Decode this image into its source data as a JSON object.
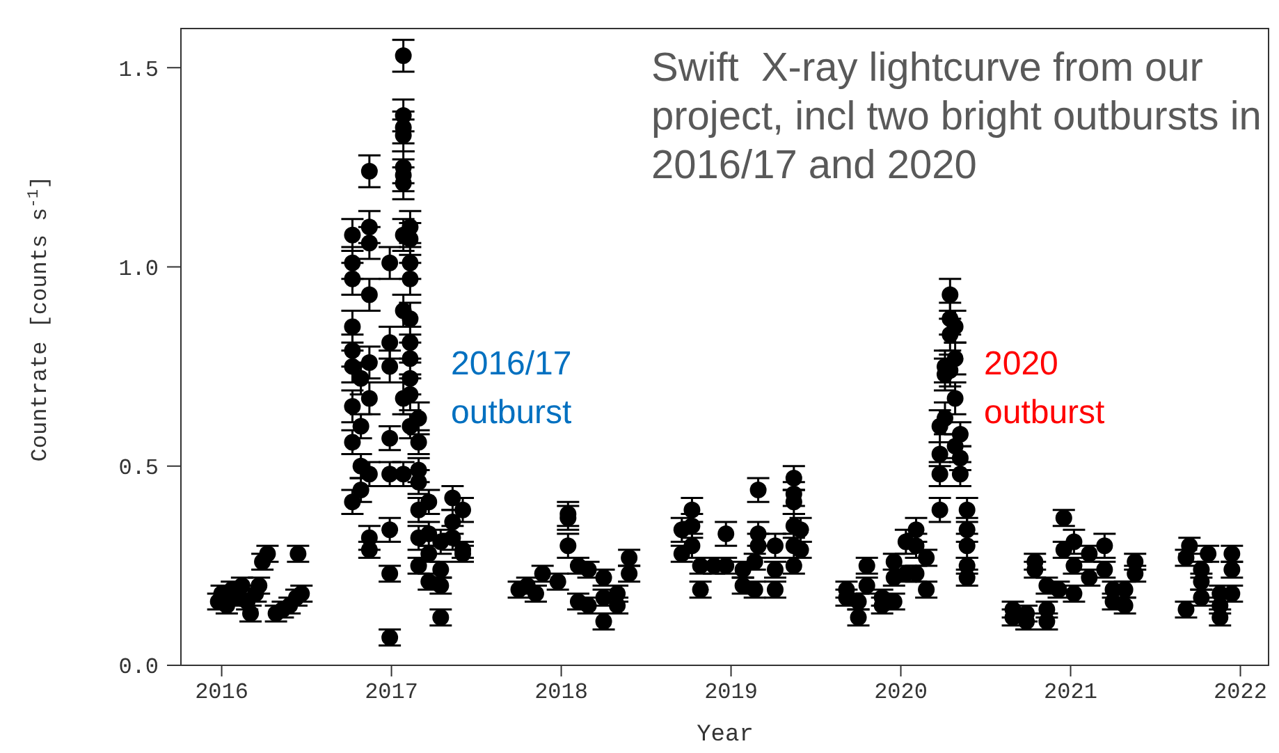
{
  "chart_data": {
    "type": "scatter",
    "xlabel": "Year",
    "ylabel": "Countrate [counts s$^{-1}$]",
    "xlim": [
      2015.76,
      2022.17
    ],
    "xticks": [
      2016,
      2017,
      2018,
      2019,
      2020,
      2021,
      2022
    ],
    "ylim": [
      0,
      1.6
    ],
    "yticks": [
      {
        "value": 0,
        "label": "0.0"
      },
      {
        "value": 0.5,
        "label": "0.5"
      },
      {
        "value": 1,
        "label": "1.0"
      },
      {
        "value": 1.5,
        "label": "1.5"
      }
    ],
    "marker": "circle",
    "annotations": [
      "Swift  X-ray lightcurve from our project, incl two bright outbursts in 2016/17 and 2020",
      "2016/17 outburst",
      "2020 outburst"
    ],
    "series": [
      {
        "color": "#000000",
        "x": [
          2015.98,
          2016.0,
          2016.03,
          2016.06,
          2016.09,
          2016.12,
          2016.15,
          2016.17,
          2016.2,
          2016.22,
          2016.24,
          2016.27,
          2016.32,
          2016.36,
          2016.4,
          2016.44,
          2016.47,
          2016.45,
          2016.77,
          2016.77,
          2016.77,
          2016.77,
          2016.77,
          2016.77,
          2016.77,
          2016.77,
          2016.77,
          2016.82,
          2016.82,
          2016.82,
          2016.82,
          2016.87,
          2016.87,
          2016.87,
          2016.87,
          2016.87,
          2016.87,
          2016.87,
          2016.87,
          2016.87,
          2016.99,
          2016.99,
          2016.99,
          2016.99,
          2016.99,
          2016.99,
          2016.99,
          2016.99,
          2017.07,
          2017.07,
          2017.07,
          2017.07,
          2017.07,
          2017.07,
          2017.07,
          2017.07,
          2017.07,
          2017.07,
          2017.07,
          2017.11,
          2017.11,
          2017.11,
          2017.11,
          2017.11,
          2017.11,
          2017.11,
          2017.11,
          2017.11,
          2017.11,
          2017.16,
          2017.16,
          2017.16,
          2017.16,
          2017.16,
          2017.16,
          2017.16,
          2017.22,
          2017.22,
          2017.22,
          2017.22,
          2017.29,
          2017.29,
          2017.29,
          2017.29,
          2017.36,
          2017.36,
          2017.36,
          2017.42,
          2017.42,
          2017.42,
          2017.75,
          2017.8,
          2017.85,
          2017.89,
          2017.98,
          2018.04,
          2018.04,
          2018.04,
          2018.1,
          2018.1,
          2018.16,
          2018.16,
          2018.25,
          2018.25,
          2018.25,
          2018.33,
          2018.33,
          2018.4,
          2018.4,
          2018.71,
          2018.71,
          2018.77,
          2018.77,
          2018.77,
          2018.82,
          2018.82,
          2018.9,
          2018.97,
          2018.97,
          2019.07,
          2019.07,
          2019.14,
          2019.14,
          2019.16,
          2019.16,
          2019.16,
          2019.26,
          2019.26,
          2019.26,
          2019.37,
          2019.37,
          2019.37,
          2019.37,
          2019.37,
          2019.37,
          2019.41,
          2019.41,
          2019.68,
          2019.68,
          2019.75,
          2019.75,
          2019.8,
          2019.8,
          2019.89,
          2019.89,
          2019.96,
          2019.96,
          2019.96,
          2020.03,
          2020.03,
          2020.09,
          2020.09,
          2020.09,
          2020.15,
          2020.15,
          2020.23,
          2020.23,
          2020.23,
          2020.23,
          2020.26,
          2020.26,
          2020.26,
          2020.29,
          2020.29,
          2020.29,
          2020.29,
          2020.32,
          2020.32,
          2020.32,
          2020.32,
          2020.35,
          2020.35,
          2020.35,
          2020.39,
          2020.39,
          2020.39,
          2020.39,
          2020.39,
          2020.66,
          2020.66,
          2020.74,
          2020.74,
          2020.79,
          2020.79,
          2020.86,
          2020.86,
          2020.86,
          2020.93,
          2020.96,
          2020.96,
          2021.02,
          2021.02,
          2021.02,
          2021.11,
          2021.11,
          2021.2,
          2021.2,
          2021.25,
          2021.25,
          2021.32,
          2021.32,
          2021.38,
          2021.38,
          2021.68,
          2021.68,
          2021.7,
          2021.77,
          2021.77,
          2021.77,
          2021.81,
          2021.88,
          2021.88,
          2021.88,
          2021.95,
          2021.95,
          2021.95
        ],
        "values": [
          0.16,
          0.18,
          0.15,
          0.19,
          0.17,
          0.2,
          0.16,
          0.13,
          0.18,
          0.2,
          0.26,
          0.28,
          0.13,
          0.14,
          0.15,
          0.17,
          0.18,
          0.28,
          1.01,
          0.97,
          1.08,
          0.85,
          0.79,
          0.75,
          0.65,
          0.56,
          0.41,
          0.72,
          0.6,
          0.5,
          0.44,
          1.24,
          1.1,
          1.06,
          0.93,
          0.76,
          0.67,
          0.48,
          0.32,
          0.29,
          1.01,
          0.81,
          0.75,
          0.57,
          0.48,
          0.34,
          0.23,
          0.07,
          1.53,
          1.38,
          1.35,
          1.33,
          1.25,
          1.23,
          1.21,
          1.08,
          0.89,
          0.67,
          0.48,
          1.1,
          1.07,
          1.01,
          0.97,
          0.87,
          0.81,
          0.77,
          0.72,
          0.68,
          0.6,
          0.62,
          0.56,
          0.49,
          0.46,
          0.39,
          0.32,
          0.25,
          0.41,
          0.33,
          0.28,
          0.21,
          0.24,
          0.2,
          0.12,
          0.31,
          0.42,
          0.36,
          0.32,
          0.39,
          0.28,
          0.29,
          0.19,
          0.2,
          0.18,
          0.23,
          0.21,
          0.38,
          0.37,
          0.3,
          0.25,
          0.16,
          0.24,
          0.15,
          0.11,
          0.22,
          0.17,
          0.15,
          0.18,
          0.27,
          0.23,
          0.34,
          0.28,
          0.39,
          0.35,
          0.3,
          0.25,
          0.19,
          0.25,
          0.33,
          0.25,
          0.24,
          0.2,
          0.26,
          0.19,
          0.44,
          0.33,
          0.3,
          0.3,
          0.24,
          0.19,
          0.47,
          0.43,
          0.41,
          0.35,
          0.3,
          0.25,
          0.34,
          0.29,
          0.17,
          0.19,
          0.16,
          0.12,
          0.25,
          0.2,
          0.15,
          0.17,
          0.26,
          0.22,
          0.16,
          0.31,
          0.23,
          0.34,
          0.3,
          0.23,
          0.27,
          0.19,
          0.39,
          0.48,
          0.53,
          0.6,
          0.62,
          0.75,
          0.73,
          0.93,
          0.87,
          0.83,
          0.74,
          0.85,
          0.77,
          0.67,
          0.55,
          0.58,
          0.52,
          0.48,
          0.39,
          0.34,
          0.3,
          0.25,
          0.22,
          0.12,
          0.14,
          0.11,
          0.13,
          0.26,
          0.24,
          0.11,
          0.14,
          0.2,
          0.19,
          0.37,
          0.29,
          0.31,
          0.25,
          0.18,
          0.28,
          0.22,
          0.3,
          0.24,
          0.19,
          0.16,
          0.15,
          0.19,
          0.26,
          0.23,
          0.14,
          0.27,
          0.3,
          0.24,
          0.21,
          0.17,
          0.28,
          0.18,
          0.12,
          0.15,
          0.18,
          0.24,
          0.28
        ],
        "errors": [
          0.02,
          0.02,
          0.02,
          0.02,
          0.02,
          0.02,
          0.02,
          0.02,
          0.02,
          0.02,
          0.02,
          0.02,
          0.02,
          0.02,
          0.02,
          0.02,
          0.02,
          0.02,
          0.04,
          0.04,
          0.04,
          0.04,
          0.04,
          0.04,
          0.04,
          0.03,
          0.03,
          0.04,
          0.03,
          0.03,
          0.03,
          0.04,
          0.04,
          0.04,
          0.04,
          0.04,
          0.04,
          0.03,
          0.03,
          0.02,
          0.04,
          0.04,
          0.04,
          0.03,
          0.03,
          0.03,
          0.02,
          0.02,
          0.04,
          0.04,
          0.04,
          0.04,
          0.04,
          0.04,
          0.04,
          0.04,
          0.04,
          0.04,
          0.03,
          0.04,
          0.04,
          0.04,
          0.04,
          0.04,
          0.04,
          0.04,
          0.04,
          0.04,
          0.03,
          0.04,
          0.03,
          0.03,
          0.03,
          0.03,
          0.03,
          0.02,
          0.03,
          0.03,
          0.02,
          0.02,
          0.02,
          0.02,
          0.02,
          0.03,
          0.03,
          0.03,
          0.03,
          0.03,
          0.02,
          0.02,
          0.02,
          0.02,
          0.02,
          0.02,
          0.02,
          0.03,
          0.03,
          0.03,
          0.02,
          0.02,
          0.02,
          0.02,
          0.02,
          0.02,
          0.02,
          0.02,
          0.02,
          0.02,
          0.02,
          0.03,
          0.02,
          0.03,
          0.03,
          0.03,
          0.02,
          0.02,
          0.02,
          0.03,
          0.02,
          0.02,
          0.02,
          0.02,
          0.02,
          0.03,
          0.03,
          0.03,
          0.03,
          0.02,
          0.02,
          0.03,
          0.03,
          0.03,
          0.03,
          0.03,
          0.02,
          0.03,
          0.02,
          0.02,
          0.02,
          0.02,
          0.02,
          0.02,
          0.02,
          0.02,
          0.02,
          0.02,
          0.02,
          0.02,
          0.03,
          0.02,
          0.03,
          0.03,
          0.02,
          0.02,
          0.02,
          0.03,
          0.03,
          0.03,
          0.04,
          0.04,
          0.04,
          0.04,
          0.04,
          0.04,
          0.04,
          0.04,
          0.04,
          0.04,
          0.04,
          0.03,
          0.03,
          0.03,
          0.03,
          0.03,
          0.03,
          0.03,
          0.02,
          0.02,
          0.02,
          0.02,
          0.02,
          0.02,
          0.02,
          0.02,
          0.02,
          0.02,
          0.02,
          0.02,
          0.02,
          0.02,
          0.03,
          0.02,
          0.02,
          0.02,
          0.02,
          0.03,
          0.02,
          0.02,
          0.02,
          0.02,
          0.02,
          0.02,
          0.02,
          0.02,
          0.02,
          0.02,
          0.02,
          0.02,
          0.02,
          0.02,
          0.02,
          0.02,
          0.02,
          0.02,
          0.02,
          0.02
        ]
      }
    ]
  }
}
